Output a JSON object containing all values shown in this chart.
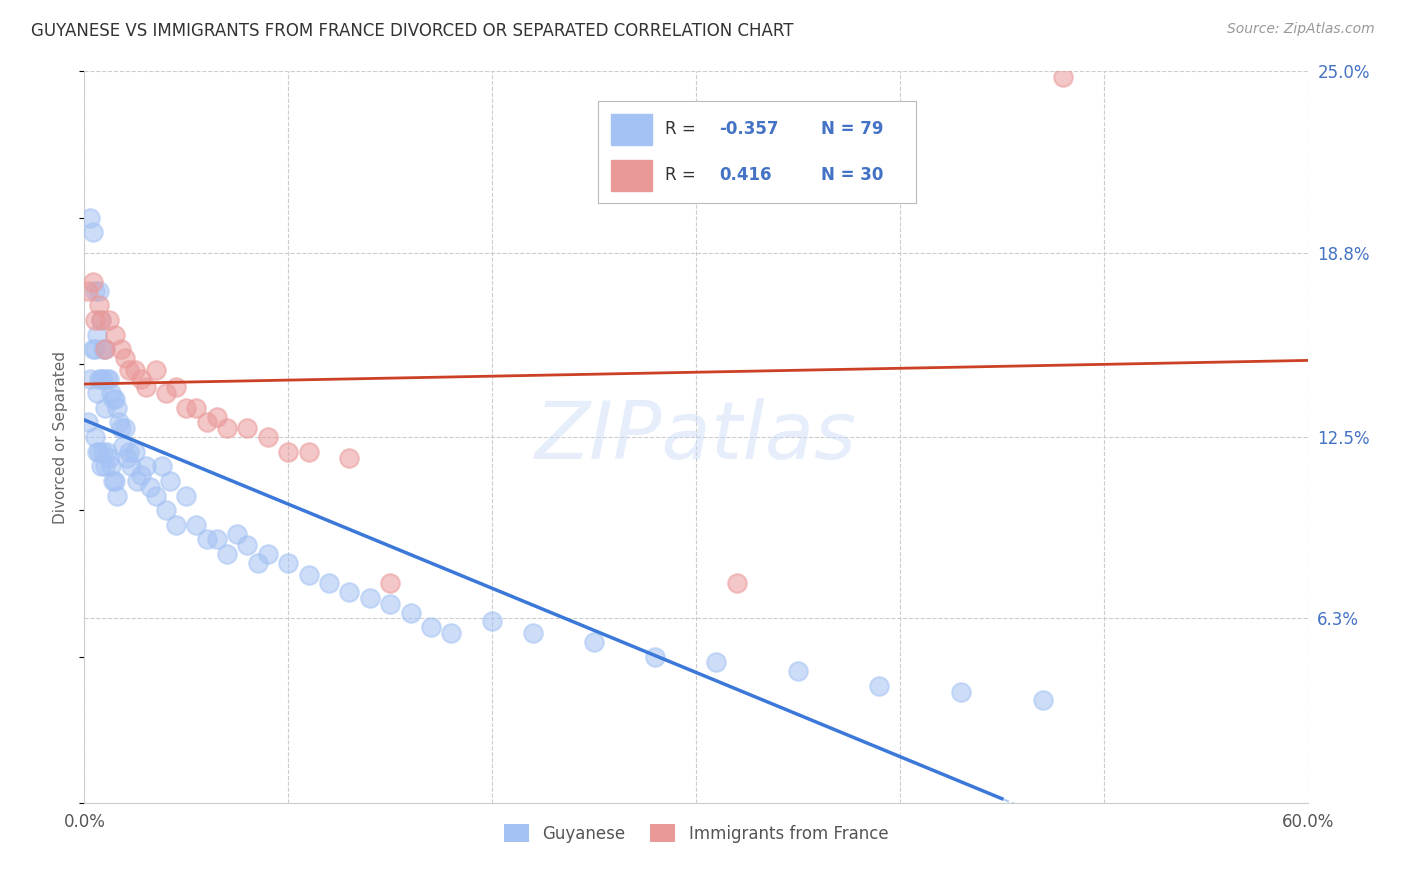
{
  "title": "GUYANESE VS IMMIGRANTS FROM FRANCE DIVORCED OR SEPARATED CORRELATION CHART",
  "source": "Source: ZipAtlas.com",
  "ylabel": "Divorced or Separated",
  "xlim": [
    0.0,
    0.6
  ],
  "ylim": [
    0.0,
    0.25
  ],
  "yticks": [
    0.0,
    0.063,
    0.125,
    0.188,
    0.25
  ],
  "ytick_labels": [
    "",
    "6.3%",
    "12.5%",
    "18.8%",
    "25.0%"
  ],
  "xticks": [
    0.0,
    0.1,
    0.2,
    0.3,
    0.4,
    0.5,
    0.6
  ],
  "xtick_labels": [
    "0.0%",
    "",
    "",
    "",
    "",
    "",
    "60.0%"
  ],
  "blue_color": "#a4c2f4",
  "pink_color": "#ea9999",
  "trend_blue": "#3c78d8",
  "trend_pink": "#cc4125",
  "blue_r": "-0.357",
  "blue_n": "79",
  "pink_r": "0.416",
  "pink_n": "30",
  "guyanese_x": [
    0.002,
    0.003,
    0.003,
    0.004,
    0.004,
    0.005,
    0.005,
    0.005,
    0.006,
    0.006,
    0.006,
    0.007,
    0.007,
    0.007,
    0.008,
    0.008,
    0.008,
    0.009,
    0.009,
    0.009,
    0.01,
    0.01,
    0.01,
    0.011,
    0.011,
    0.012,
    0.012,
    0.013,
    0.013,
    0.014,
    0.014,
    0.015,
    0.015,
    0.016,
    0.016,
    0.017,
    0.018,
    0.019,
    0.02,
    0.021,
    0.022,
    0.023,
    0.025,
    0.026,
    0.028,
    0.03,
    0.032,
    0.035,
    0.038,
    0.04,
    0.042,
    0.045,
    0.05,
    0.055,
    0.06,
    0.065,
    0.07,
    0.075,
    0.08,
    0.085,
    0.09,
    0.1,
    0.11,
    0.12,
    0.13,
    0.14,
    0.15,
    0.16,
    0.17,
    0.18,
    0.2,
    0.22,
    0.25,
    0.28,
    0.31,
    0.35,
    0.39,
    0.43,
    0.47
  ],
  "guyanese_y": [
    0.13,
    0.2,
    0.145,
    0.195,
    0.155,
    0.175,
    0.155,
    0.125,
    0.16,
    0.14,
    0.12,
    0.175,
    0.145,
    0.12,
    0.165,
    0.145,
    0.115,
    0.155,
    0.145,
    0.12,
    0.155,
    0.135,
    0.115,
    0.145,
    0.12,
    0.145,
    0.118,
    0.14,
    0.115,
    0.138,
    0.11,
    0.138,
    0.11,
    0.135,
    0.105,
    0.13,
    0.128,
    0.122,
    0.128,
    0.118,
    0.12,
    0.115,
    0.12,
    0.11,
    0.112,
    0.115,
    0.108,
    0.105,
    0.115,
    0.1,
    0.11,
    0.095,
    0.105,
    0.095,
    0.09,
    0.09,
    0.085,
    0.092,
    0.088,
    0.082,
    0.085,
    0.082,
    0.078,
    0.075,
    0.072,
    0.07,
    0.068,
    0.065,
    0.06,
    0.058,
    0.062,
    0.058,
    0.055,
    0.05,
    0.048,
    0.045,
    0.04,
    0.038,
    0.035
  ],
  "france_x": [
    0.002,
    0.004,
    0.005,
    0.007,
    0.008,
    0.01,
    0.012,
    0.015,
    0.018,
    0.02,
    0.022,
    0.025,
    0.028,
    0.03,
    0.035,
    0.04,
    0.045,
    0.05,
    0.055,
    0.06,
    0.065,
    0.07,
    0.08,
    0.09,
    0.1,
    0.11,
    0.13,
    0.15,
    0.32,
    0.48
  ],
  "france_y": [
    0.175,
    0.178,
    0.165,
    0.17,
    0.165,
    0.155,
    0.165,
    0.16,
    0.155,
    0.152,
    0.148,
    0.148,
    0.145,
    0.142,
    0.148,
    0.14,
    0.142,
    0.135,
    0.135,
    0.13,
    0.132,
    0.128,
    0.128,
    0.125,
    0.12,
    0.12,
    0.118,
    0.075,
    0.075,
    0.248
  ]
}
